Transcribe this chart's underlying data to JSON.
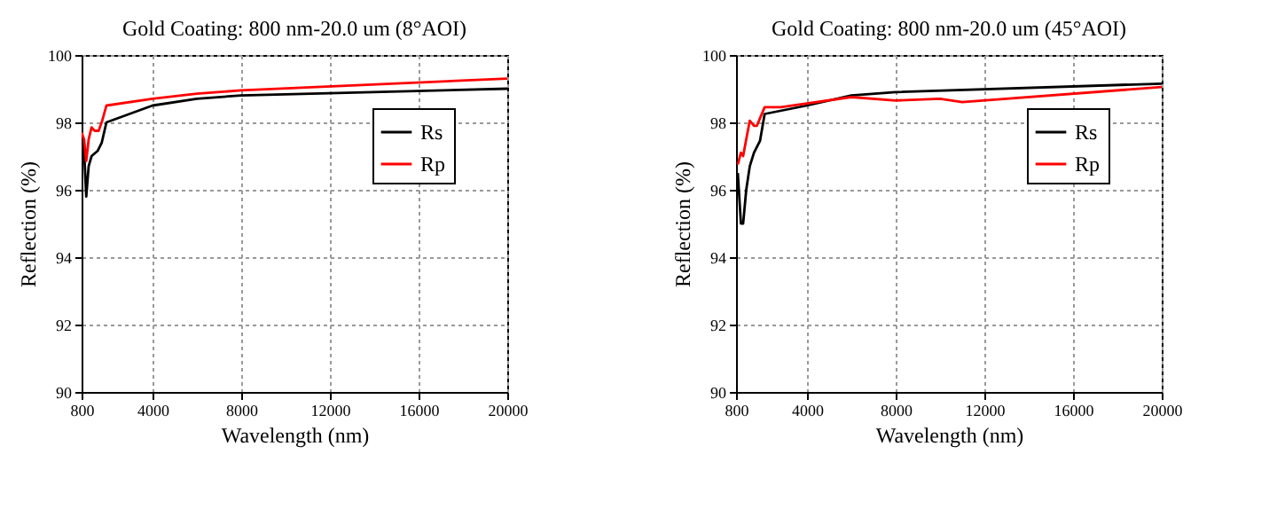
{
  "chart_data": [
    {
      "type": "line",
      "title": "Gold Coating: 800 nm-20.0 um (8°AOI)",
      "xlabel": "Wavelength (nm)",
      "ylabel": "Reflection (%)",
      "xlim": [
        800,
        20000
      ],
      "xticks": [
        800,
        4000,
        8000,
        12000,
        16000,
        20000
      ],
      "ylim": [
        90,
        100
      ],
      "yticks": [
        90,
        92,
        94,
        96,
        98,
        100
      ],
      "grid": true,
      "legend": "top right",
      "series": [
        {
          "name": "Rs",
          "color": "#000000",
          "x": [
            800,
            910,
            1010,
            1120,
            1250,
            1520,
            1710,
            1920,
            4000,
            6000,
            8000,
            20000
          ],
          "values": [
            97.5,
            97.2,
            95.8,
            96.7,
            97.0,
            97.15,
            97.4,
            98.0,
            98.5,
            98.7,
            98.8,
            99.0
          ]
        },
        {
          "name": "Rp",
          "color": "#ff0000",
          "x": [
            800,
            910,
            1010,
            1120,
            1250,
            1390,
            1570,
            1730,
            1920,
            4000,
            6000,
            8000,
            20000
          ],
          "values": [
            97.7,
            97.5,
            96.85,
            97.5,
            97.85,
            97.75,
            97.75,
            98.05,
            98.5,
            98.7,
            98.85,
            98.95,
            99.3
          ]
        }
      ]
    },
    {
      "type": "line",
      "title": "Gold Coating: 800 nm-20.0 um (45°AOI)",
      "xlabel": "Wavelength (nm)",
      "ylabel": "Reflection (%)",
      "xlim": [
        800,
        20000
      ],
      "xticks": [
        800,
        4000,
        8000,
        12000,
        16000,
        20000
      ],
      "ylim": [
        90,
        100
      ],
      "yticks": [
        90,
        92,
        94,
        96,
        98,
        100
      ],
      "grid": true,
      "legend": "top right",
      "series": [
        {
          "name": "Rs",
          "color": "#000000",
          "x": [
            880,
            1020,
            1120,
            1260,
            1420,
            1610,
            1880,
            2090,
            4000,
            6000,
            8000,
            20000
          ],
          "values": [
            96.5,
            95.0,
            95.0,
            96.0,
            96.7,
            97.1,
            97.45,
            98.25,
            98.5,
            98.8,
            98.9,
            99.15
          ]
        },
        {
          "name": "Rp",
          "color": "#ff0000",
          "x": [
            880,
            1020,
            1120,
            1260,
            1420,
            1610,
            1740,
            1930,
            2090,
            2820,
            6000,
            8000,
            10000,
            11000,
            20000
          ],
          "values": [
            96.75,
            97.1,
            97.0,
            97.5,
            98.05,
            97.9,
            97.9,
            98.2,
            98.45,
            98.45,
            98.75,
            98.65,
            98.7,
            98.6,
            99.05
          ]
        }
      ]
    }
  ]
}
